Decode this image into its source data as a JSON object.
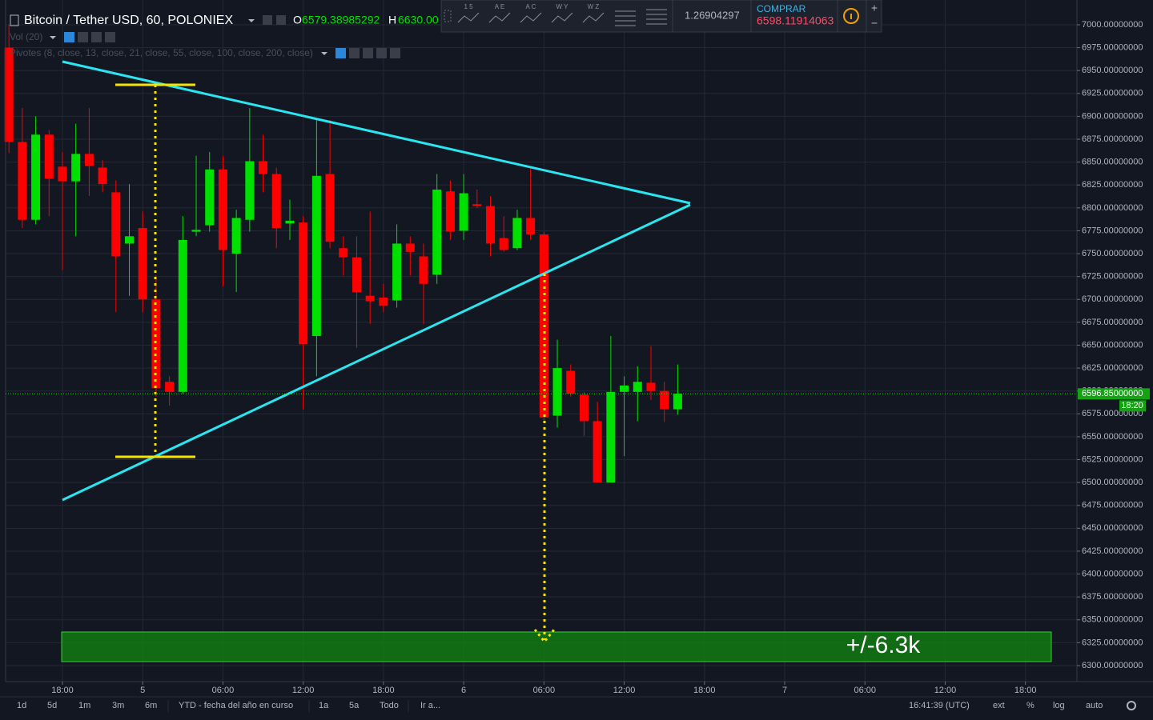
{
  "header": {
    "title": "Bitcoin / Tether USD, 60, POLONIEX",
    "o_label": "O",
    "o_value": "6579.38985292",
    "h_label": "H",
    "h_value": "6630.00",
    "volume": "Vol (20)",
    "pivots": "Pivotes (8, close, 13, close, 21, close, 55, close, 100, close, 200, close)"
  },
  "toolbar": {
    "icons": [
      "1 5",
      "A E",
      "A C",
      "W Y",
      "W Z"
    ],
    "value": "1.26904297",
    "buy_label": "COMPRAR",
    "buy_price": "6598.11914063",
    "plus": "+",
    "minus": "−"
  },
  "bottom_toolbar": {
    "ranges": [
      "1d",
      "5d",
      "1m",
      "3m",
      "6m",
      "YTD - fecha del año en curso",
      "1a",
      "5a",
      "Todo",
      "Ir a..."
    ],
    "clock": "16:41:39 (UTC)",
    "options": [
      "ext",
      "%",
      "log",
      "auto"
    ]
  },
  "chart_data": {
    "type": "candlestick",
    "up_color": "#00e000",
    "down_color": "#ff0000",
    "x": [
      -4,
      -3,
      -2,
      -1,
      0,
      1,
      2,
      3,
      4,
      5,
      6,
      7,
      8,
      9,
      10,
      11,
      12,
      13,
      14,
      15,
      16,
      17,
      18,
      19,
      20,
      21,
      22,
      23,
      24,
      25,
      26,
      27,
      28,
      29,
      30,
      31,
      32,
      33,
      34,
      35,
      36,
      37,
      38,
      39,
      40,
      41,
      42,
      43,
      44,
      45,
      46
    ],
    "open": [
      6975,
      6872,
      6787,
      6880,
      6845,
      6829,
      6859,
      6844,
      6817,
      6761,
      6778,
      6700,
      6610,
      6599,
      6774,
      6781,
      6842,
      6750,
      6787,
      6851,
      6837,
      6783,
      6784,
      6660,
      6837,
      6756,
      6746,
      6704,
      6702,
      6699,
      6761,
      6747,
      6727,
      6818,
      6775,
      6804,
      6802,
      6767,
      6756,
      6789,
      6771,
      6573,
      6622,
      6596,
      6567,
      6500,
      6599,
      6599,
      6609,
      6600,
      6580
    ],
    "high": [
      7000,
      6909,
      6900,
      6885,
      6861,
      6892,
      6909,
      6852,
      6830,
      6826,
      6796,
      6726,
      6616,
      6791,
      6857,
      6861,
      6857,
      6798,
      6909,
      6880,
      6844,
      6809,
      6791,
      6898,
      6896,
      6769,
      6769,
      6796,
      6717,
      6782,
      6769,
      6761,
      6837,
      6830,
      6837,
      6820,
      6813,
      6791,
      6798,
      6846,
      6774,
      6656,
      6629,
      6599,
      6588,
      6660,
      6616,
      6627,
      6649,
      6610,
      6629
    ],
    "low": [
      6860,
      6778,
      6782,
      6791,
      6732,
      6769,
      6813,
      6817,
      6686,
      6704,
      6686,
      6594,
      6584,
      6597,
      6769,
      6774,
      6714,
      6708,
      6774,
      6817,
      6756,
      6765,
      6580,
      6616,
      6756,
      6726,
      6647,
      6673,
      6686,
      6691,
      6726,
      6673,
      6717,
      6765,
      6765,
      6800,
      6747,
      6752,
      6754,
      6765,
      6568,
      6560,
      6594,
      6551,
      6500,
      6500,
      6529,
      6567,
      6590,
      6566,
      6574
    ],
    "close": [
      6872,
      6787,
      6880,
      6832,
      6829,
      6859,
      6846,
      6826,
      6747,
      6769,
      6700,
      6603,
      6599,
      6765,
      6776,
      6842,
      6754,
      6789,
      6851,
      6837,
      6778,
      6786,
      6651,
      6835,
      6763,
      6746,
      6708,
      6698,
      6693,
      6761,
      6752,
      6717,
      6820,
      6774,
      6816,
      6802,
      6761,
      6754,
      6789,
      6771,
      6571,
      6625,
      6597,
      6567,
      6500,
      6599,
      6606,
      6610,
      6600,
      6580,
      6597
    ],
    "xlim": [
      -4.25,
      75.85
    ],
    "xticks": [
      {
        "value": 0,
        "label": "18:00"
      },
      {
        "value": 6,
        "label": "5"
      },
      {
        "value": 12,
        "label": "06:00"
      },
      {
        "value": 18,
        "label": "12:00"
      },
      {
        "value": 24,
        "label": "18:00"
      },
      {
        "value": 30,
        "label": "6"
      },
      {
        "value": 36,
        "label": "06:00"
      },
      {
        "value": 42,
        "label": "12:00"
      },
      {
        "value": 48,
        "label": "18:00"
      },
      {
        "value": 54,
        "label": "7"
      },
      {
        "value": 60,
        "label": "06:00"
      },
      {
        "value": 66,
        "label": "12:00"
      },
      {
        "value": 72,
        "label": "18:00"
      }
    ],
    "ylim": [
      6282.5,
      7020.1
    ],
    "yticks": [
      {
        "value": 6300,
        "label": "6300.00000000"
      },
      {
        "value": 6325,
        "label": "6325.00000000"
      },
      {
        "value": 6350,
        "label": "6350.00000000"
      },
      {
        "value": 6375,
        "label": "6375.00000000"
      },
      {
        "value": 6400,
        "label": "6400.00000000"
      },
      {
        "value": 6425,
        "label": "6425.00000000"
      },
      {
        "value": 6450,
        "label": "6450.00000000"
      },
      {
        "value": 6475,
        "label": "6475.00000000"
      },
      {
        "value": 6500,
        "label": "6500.00000000"
      },
      {
        "value": 6525,
        "label": "6525.00000000"
      },
      {
        "value": 6550,
        "label": "6550.00000000"
      },
      {
        "value": 6575,
        "label": "6575.00000000"
      },
      {
        "value": 6600,
        "label": "6600.00000000"
      },
      {
        "value": 6625,
        "label": "6625.00000000"
      },
      {
        "value": 6650,
        "label": "6650.00000000"
      },
      {
        "value": 6675,
        "label": "6675.00000000"
      },
      {
        "value": 6700,
        "label": "6700.00000000"
      },
      {
        "value": 6725,
        "label": "6725.00000000"
      },
      {
        "value": 6750,
        "label": "6750.00000000"
      },
      {
        "value": 6775,
        "label": "6775.00000000"
      },
      {
        "value": 6800,
        "label": "6800.00000000"
      },
      {
        "value": 6825,
        "label": "6825.00000000"
      },
      {
        "value": 6850,
        "label": "6850.00000000"
      },
      {
        "value": 6875,
        "label": "6875.00000000"
      },
      {
        "value": 6900,
        "label": "6900.00000000"
      },
      {
        "value": 6925,
        "label": "6925.00000000"
      },
      {
        "value": 6950,
        "label": "6950.00000000"
      },
      {
        "value": 6975,
        "label": "6975.00000000"
      },
      {
        "value": 7000,
        "label": "7000.00000000"
      }
    ],
    "grid": true,
    "last_price": {
      "value": 6596.85,
      "label": "6596.85000000"
    },
    "countdown": "18:20",
    "annotation": "+/-6.3k"
  }
}
